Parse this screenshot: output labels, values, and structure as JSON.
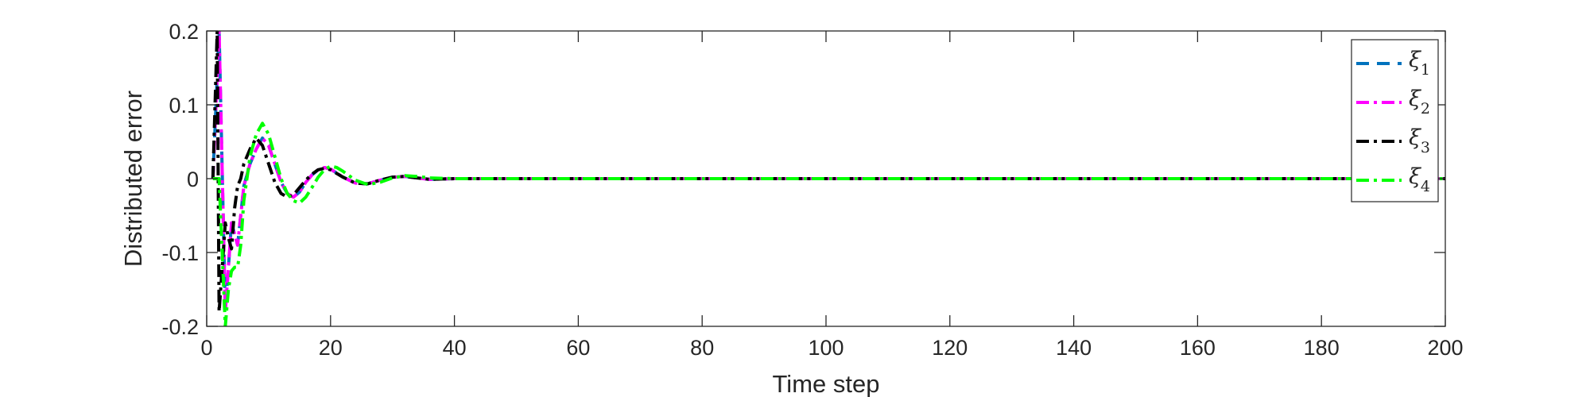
{
  "chart_data": {
    "type": "line",
    "title": "",
    "xlabel": "Time step",
    "ylabel": "Distributed error",
    "xlim": [
      0,
      200
    ],
    "ylim": [
      -0.2,
      0.2
    ],
    "xticks": [
      0,
      20,
      40,
      60,
      80,
      100,
      120,
      140,
      160,
      180,
      200
    ],
    "xtick_labels": [
      "0",
      "20",
      "40",
      "60",
      "80",
      "100",
      "120",
      "140",
      "160",
      "180",
      "200"
    ],
    "yticks": [
      -0.2,
      -0.1,
      0,
      0.1,
      0.2
    ],
    "ytick_labels": [
      "-0.2",
      "-0.1",
      "0",
      "0.1",
      "0.2"
    ],
    "grid": false,
    "legend_position": "top-right",
    "series": [
      {
        "name": "ξ1",
        "symbol": "ξ",
        "subscript": "1",
        "color": "#0072BD",
        "dash": "dashed",
        "x": [
          1,
          2,
          3,
          4,
          5,
          6,
          7,
          8,
          9,
          10,
          11,
          12,
          13,
          14,
          15,
          16,
          17,
          18,
          19,
          20,
          22,
          24,
          26,
          28,
          30,
          32,
          34,
          36,
          40,
          45,
          50,
          60,
          80,
          100,
          120,
          140,
          160,
          180,
          200
        ],
        "values": [
          0,
          0.2,
          -0.18,
          -0.06,
          -0.09,
          -0.01,
          0.02,
          0.04,
          0.055,
          0.045,
          0.02,
          -0.005,
          -0.02,
          -0.025,
          -0.018,
          -0.005,
          0.005,
          0.012,
          0.015,
          0.013,
          0.002,
          -0.006,
          -0.007,
          -0.002,
          0.002,
          0.003,
          0.001,
          -0.001,
          0,
          0,
          0,
          0,
          0,
          0,
          0,
          0,
          0,
          0,
          0
        ]
      },
      {
        "name": "ξ2",
        "symbol": "ξ",
        "subscript": "2",
        "color": "#FF00FF",
        "dash": "dashdot",
        "x": [
          1,
          2,
          3,
          4,
          5,
          6,
          7,
          8,
          9,
          10,
          11,
          12,
          13,
          14,
          15,
          16,
          17,
          18,
          19,
          20,
          22,
          24,
          26,
          28,
          30,
          32,
          34,
          36,
          40,
          45,
          50,
          60,
          80,
          100,
          120,
          140,
          160,
          180,
          200
        ],
        "values": [
          0,
          0.2,
          -0.18,
          -0.06,
          -0.09,
          -0.01,
          0.02,
          0.04,
          0.055,
          0.045,
          0.02,
          -0.005,
          -0.02,
          -0.025,
          -0.018,
          -0.005,
          0.005,
          0.012,
          0.015,
          0.013,
          0.002,
          -0.006,
          -0.007,
          -0.002,
          0.002,
          0.003,
          0.001,
          -0.001,
          0,
          0,
          0,
          0,
          0,
          0,
          0,
          0,
          0,
          0,
          0
        ]
      },
      {
        "name": "ξ3",
        "symbol": "ξ",
        "subscript": "3",
        "color": "#000000",
        "dash": "dashdot",
        "x": [
          1,
          1.7,
          2,
          2.5,
          3,
          3.5,
          4,
          4.5,
          5,
          5.5,
          6,
          7,
          8,
          9,
          10,
          11,
          12,
          13,
          14,
          15,
          16,
          17,
          18,
          19,
          20,
          22,
          24,
          26,
          28,
          30,
          32,
          34,
          36,
          40,
          45,
          50,
          60,
          80,
          100,
          120,
          140,
          160,
          180,
          200
        ],
        "values": [
          0,
          0.2,
          -0.18,
          -0.12,
          -0.06,
          -0.08,
          -0.095,
          -0.04,
          -0.01,
          0,
          0.02,
          0.04,
          0.055,
          0.045,
          0.02,
          -0.005,
          -0.02,
          -0.025,
          -0.022,
          -0.012,
          -0.002,
          0.006,
          0.012,
          0.014,
          0.012,
          0.002,
          -0.006,
          -0.007,
          -0.002,
          0.002,
          0.003,
          0.001,
          -0.001,
          0,
          0,
          0,
          0,
          0,
          0,
          0,
          0,
          0,
          0,
          0
        ]
      },
      {
        "name": "ξ4",
        "symbol": "ξ",
        "subscript": "4",
        "color": "#00FF00",
        "dash": "dashdot",
        "x": [
          1,
          2,
          3,
          3.5,
          4,
          4.5,
          5,
          5.5,
          6,
          7,
          8,
          9,
          10,
          11,
          12,
          13,
          14,
          15,
          16,
          17,
          18,
          19,
          20,
          21,
          22,
          24,
          26,
          28,
          30,
          32,
          34,
          36,
          40,
          45,
          50,
          60,
          80,
          100,
          120,
          140,
          160,
          180,
          200
        ],
        "values": [
          0,
          0,
          -0.2,
          -0.15,
          -0.125,
          -0.12,
          -0.12,
          -0.09,
          -0.03,
          0.03,
          0.06,
          0.075,
          0.06,
          0.03,
          0,
          -0.02,
          -0.03,
          -0.033,
          -0.025,
          -0.012,
          0.002,
          0.012,
          0.017,
          0.015,
          0.01,
          -0.002,
          -0.008,
          -0.005,
          0.001,
          0.004,
          0.003,
          0.001,
          0,
          0,
          0,
          0,
          0,
          0,
          0,
          0,
          0,
          0,
          0
        ]
      }
    ]
  }
}
